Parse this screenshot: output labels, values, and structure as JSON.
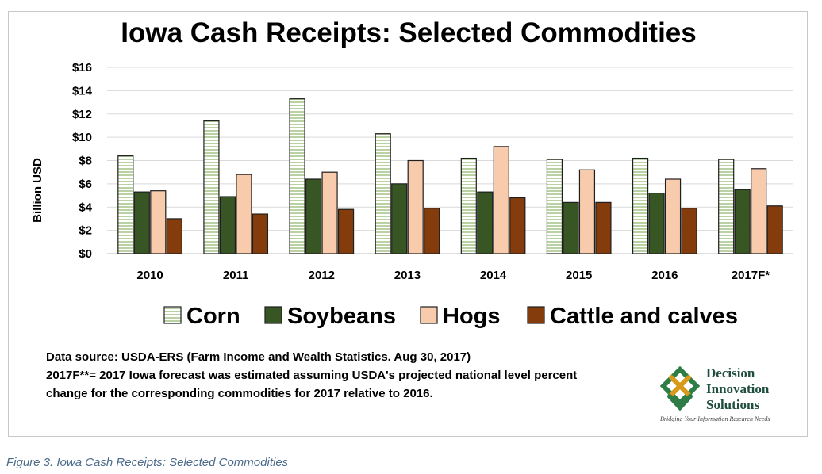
{
  "chart_data": {
    "type": "bar",
    "title": "Iowa Cash Receipts: Selected Commodities",
    "ylabel": "Billion USD",
    "xlabel": "",
    "categories": [
      "2010",
      "2011",
      "2012",
      "2013",
      "2014",
      "2015",
      "2016",
      "2017F*"
    ],
    "y_ticks": [
      "$0",
      "$2",
      "$4",
      "$6",
      "$8",
      "$10",
      "$12",
      "$14",
      "$16"
    ],
    "ylim": [
      0,
      16
    ],
    "grid": true,
    "legend_position": "bottom",
    "series": [
      {
        "name": "Corn",
        "values": [
          8.4,
          11.4,
          13.3,
          10.3,
          8.2,
          8.1,
          8.2,
          8.1
        ],
        "color": "#e8f0e0"
      },
      {
        "name": "Soybeans",
        "values": [
          5.3,
          4.9,
          6.4,
          6.0,
          5.3,
          4.4,
          5.2,
          5.5
        ],
        "color": "#375623"
      },
      {
        "name": "Hogs",
        "values": [
          5.4,
          6.8,
          7.0,
          8.0,
          9.2,
          7.2,
          6.4,
          7.3
        ],
        "color": "#f8cbad"
      },
      {
        "name": "Cattle and calves",
        "values": [
          3.0,
          3.4,
          3.8,
          3.9,
          4.8,
          4.4,
          3.9,
          4.1
        ],
        "color": "#843c0c"
      }
    ]
  },
  "notes": {
    "source": "Data source: USDA-ERS (Farm Income and Wealth Statistics. Aug 30, 2017)",
    "forecast_line1": "2017F**= 2017 Iowa forecast was estimated assuming USDA's projected national level percent",
    "forecast_line2": "change for the corresponding commodities for 2017 relative to 2016."
  },
  "logo": {
    "line1": "Decision",
    "line2": "Innovation",
    "line3": "Solutions",
    "tagline": "Bridging Your Information Research Needs"
  },
  "caption": "Figure 3. Iowa Cash Receipts: Selected Commodities"
}
